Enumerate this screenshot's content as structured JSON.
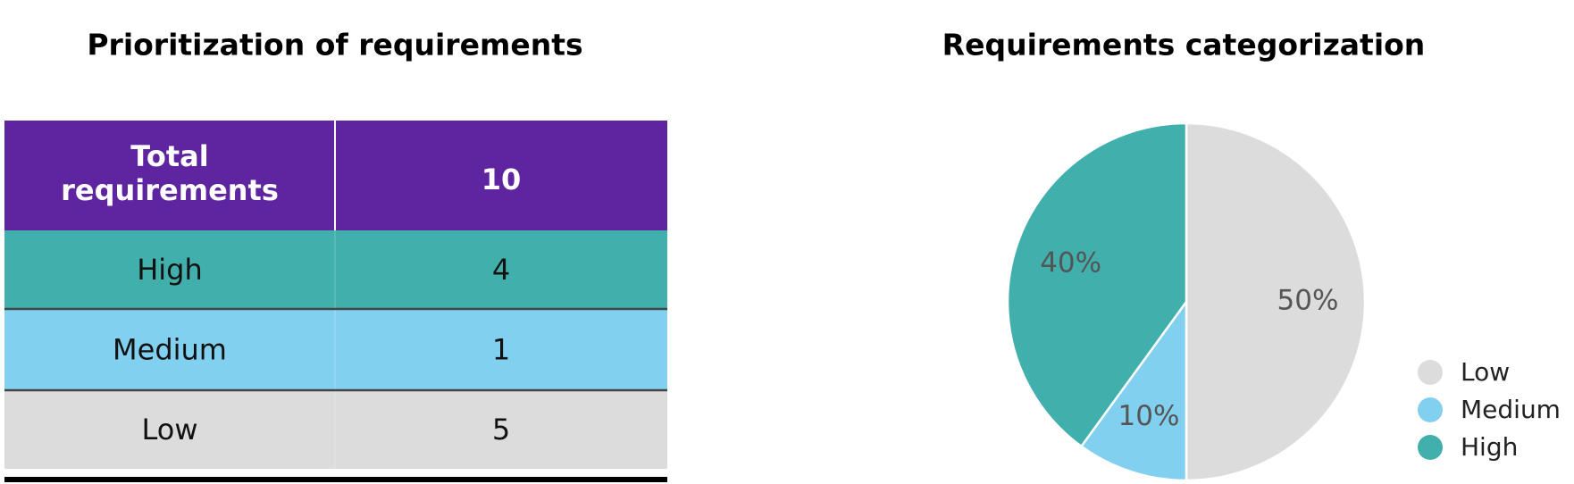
{
  "table": {
    "title": "Prioritization of requirements",
    "header": [
      "Total requirements",
      "10"
    ],
    "rows": [
      [
        "High",
        "4"
      ],
      [
        "Medium",
        "1"
      ],
      [
        "Low",
        "5"
      ]
    ],
    "row_colors": [
      "#41afac",
      "#82d0ef",
      "#dcdcdc"
    ],
    "header_color": "#5f249f"
  },
  "chart_data": {
    "type": "pie",
    "title": "Requirements categorization",
    "categories": [
      "Low",
      "Medium",
      "High"
    ],
    "values": [
      50,
      10,
      40
    ],
    "value_labels": [
      "50%",
      "10%",
      "40%"
    ],
    "colors": [
      "#dcdcdc",
      "#82d0ef",
      "#41afac"
    ],
    "legend": "right"
  }
}
